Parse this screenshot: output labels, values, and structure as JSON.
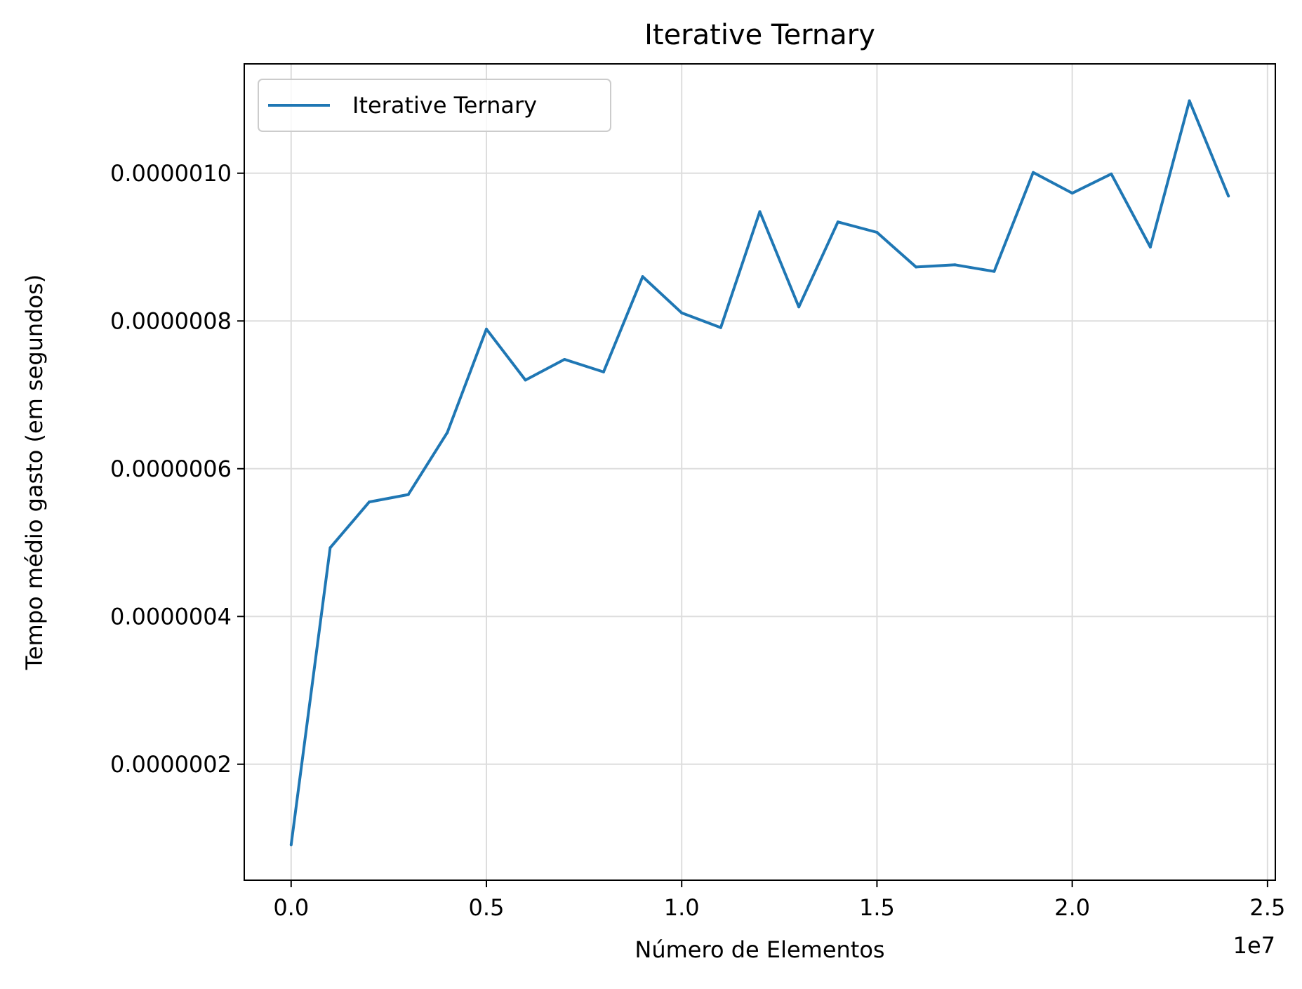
{
  "chart_data": {
    "type": "line",
    "title": "Iterative Ternary",
    "xlabel": "Número de Elementos",
    "ylabel": "Tempo médio gasto (em segundos)",
    "x_offset_label": "1e7",
    "x_tick_labels": [
      "0.0",
      "0.5",
      "1.0",
      "1.5",
      "2.0",
      "2.5"
    ],
    "x_ticks": [
      0,
      5000000,
      10000000,
      15000000,
      20000000,
      25000000
    ],
    "y_tick_labels": [
      "0.0000002",
      "0.0000004",
      "0.0000006",
      "0.0000008",
      "0.0000010"
    ],
    "y_ticks": [
      2e-07,
      4e-07,
      6e-07,
      8e-07,
      1e-06
    ],
    "xlim": [
      -1200000,
      25200000
    ],
    "ylim": [
      4.3e-08,
      1.148e-06
    ],
    "grid": true,
    "legend_position": "upper left",
    "series": [
      {
        "name": "Iterative Ternary",
        "color": "#1f77b4",
        "x": [
          0,
          1000000,
          2000000,
          3000000,
          4000000,
          5000000,
          6000000,
          7000000,
          8000000,
          9000000,
          10000000,
          11000000,
          12000000,
          13000000,
          14000000,
          15000000,
          16000000,
          17000000,
          18000000,
          19000000,
          20000000,
          21000000,
          22000000,
          23000000,
          24000000
        ],
        "y": [
          9.1e-08,
          4.93e-07,
          5.55e-07,
          5.65e-07,
          6.49e-07,
          7.89e-07,
          7.2e-07,
          7.48e-07,
          7.31e-07,
          8.6e-07,
          8.11e-07,
          7.91e-07,
          9.48e-07,
          8.19e-07,
          9.34e-07,
          9.2e-07,
          8.73e-07,
          8.76e-07,
          8.67e-07,
          1.001e-06,
          9.73e-07,
          9.99e-07,
          9e-07,
          1.098e-06,
          9.69e-07
        ]
      }
    ]
  }
}
